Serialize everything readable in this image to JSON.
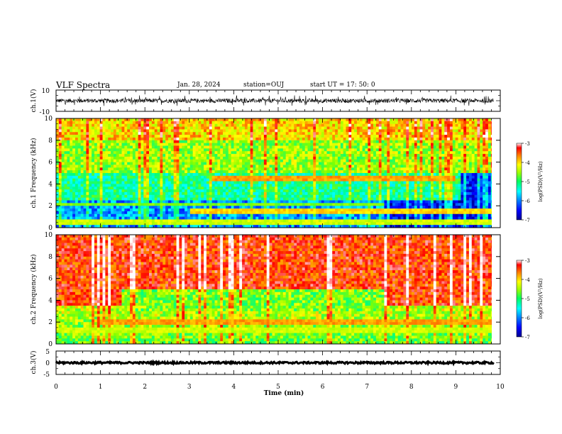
{
  "header": {
    "title": "VLF Spectra",
    "date": "Jan. 28, 2024",
    "station": "station=OUJ",
    "start": "start UT =  17: 50: 0"
  },
  "chart_data": [
    {
      "type": "line",
      "panel": "ch1-waveform",
      "ylabel": "ch.1(V)",
      "ylim": [
        -10,
        10
      ],
      "yticks": [
        "10",
        "-10"
      ],
      "baseline": 0,
      "amplitude_typical": 2,
      "spike_amplitude": 5,
      "xlim": [
        0,
        10
      ]
    },
    {
      "type": "heatmap",
      "panel": "ch1-spectrogram",
      "ylabel": "ch.1 Frequency (kHz)",
      "ylim": [
        0,
        10
      ],
      "yticks": [
        "0",
        "2",
        "4",
        "6",
        "8",
        "10"
      ],
      "xlim": [
        0,
        10
      ],
      "data_end_min": 9.85,
      "colorbar": {
        "label": "log(PSD)(V²/Hz)",
        "range": [
          -7,
          -3
        ],
        "ticks": [
          "-3",
          "-4",
          "-5",
          "-6",
          "-7"
        ]
      },
      "bands_khz": [
        {
          "freq": 4.5,
          "t_start": 3.5,
          "t_end": 9.0,
          "level": -4.0
        },
        {
          "freq": 1.5,
          "t_start": 3.0,
          "t_end": 9.9,
          "level": -4.2
        },
        {
          "freq": 2.1,
          "t_start": 0.0,
          "t_end": 7.4,
          "level": -4.8
        },
        {
          "freq": 0.5,
          "t_start": 0.0,
          "t_end": 9.9,
          "level": -4.5
        }
      ]
    },
    {
      "type": "heatmap",
      "panel": "ch2-spectrogram",
      "ylabel": "ch.2 Frequency (kHz)",
      "ylim": [
        0,
        10
      ],
      "yticks": [
        "0",
        "2",
        "4",
        "6",
        "8",
        "10"
      ],
      "xlim": [
        0,
        10
      ],
      "data_end_min": 9.85,
      "colorbar": {
        "label": "log(PSD)(V²/Hz)",
        "range": [
          -7,
          -3
        ],
        "ticks": [
          "-3",
          "-4",
          "-5",
          "-6",
          "-7"
        ]
      },
      "bands_khz": [
        {
          "freq": 2.0,
          "t_start": 1.0,
          "t_end": 9.9,
          "level": -4.0
        },
        {
          "freq": 1.2,
          "t_start": 0.0,
          "t_end": 9.9,
          "level": -4.5
        }
      ]
    },
    {
      "type": "line",
      "panel": "ch3-waveform",
      "ylabel": "ch.3(V)",
      "ylim": [
        -5,
        5
      ],
      "yticks": [
        "5",
        "0",
        "-5"
      ],
      "baseline": 0,
      "amplitude_typical": 0.4,
      "xlim": [
        0,
        10
      ]
    }
  ],
  "x_axis": {
    "label": "Time (min)",
    "ticks": [
      "0",
      "1",
      "2",
      "3",
      "4",
      "5",
      "6",
      "7",
      "8",
      "9",
      "10"
    ]
  },
  "colors": {
    "colormap": [
      "#00008f",
      "#0000ff",
      "#0080ff",
      "#00ffff",
      "#00ff80",
      "#80ff00",
      "#ffff00",
      "#ff8000",
      "#ff0000",
      "#ffffff"
    ],
    "axis": "#000000",
    "trace": "#000000"
  }
}
